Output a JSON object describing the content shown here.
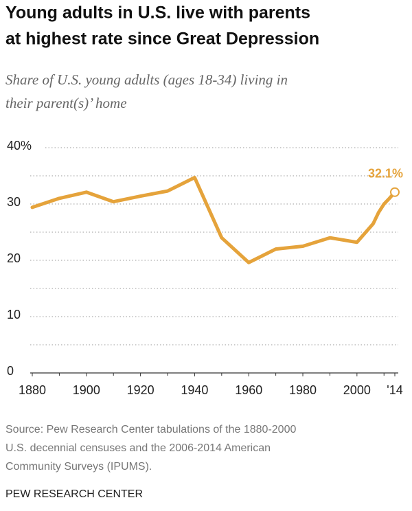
{
  "chart_data": {
    "type": "line",
    "title": [
      "Young adults in U.S. live with parents",
      "at highest rate since Great Depression"
    ],
    "subtitle": [
      "Share of U.S. young adults (ages 18-34) living in",
      "their parent(s)’ home"
    ],
    "x": [
      1880,
      1890,
      1900,
      1910,
      1920,
      1930,
      1940,
      1950,
      1960,
      1970,
      1980,
      1990,
      2000,
      2006,
      2008,
      2010,
      2012,
      2014
    ],
    "series": [
      {
        "color": "#e5a33b",
        "values": [
          29.4,
          31.0,
          32.1,
          30.4,
          31.4,
          32.3,
          34.7,
          24.0,
          19.6,
          22.0,
          22.5,
          24.0,
          23.2,
          26.5,
          28.5,
          30.0,
          31.0,
          32.1
        ]
      }
    ],
    "value_labels": {
      "17": "32.1%"
    },
    "xlim": [
      1880,
      2014
    ],
    "xticks": [
      1880,
      1900,
      1920,
      1940,
      1960,
      1980,
      2000,
      {
        "value": 2014,
        "label": "'14"
      }
    ],
    "x_minor_ticks": [
      1890,
      1910,
      1930,
      1950,
      1970,
      1990,
      2010
    ],
    "ylim": [
      0,
      40
    ],
    "yticks": [
      0,
      10,
      20,
      30,
      {
        "value": 40,
        "label": "40%"
      }
    ],
    "y_minor_ticks": [
      5,
      15,
      25,
      35
    ],
    "grid": true,
    "source": [
      "Source: Pew Research Center tabulations of the 1880-2000",
      "U.S. decennial censuses and the 2006-2014 American",
      "Community Surveys (IPUMS)."
    ],
    "credit": "PEW RESEARCH CENTER"
  }
}
